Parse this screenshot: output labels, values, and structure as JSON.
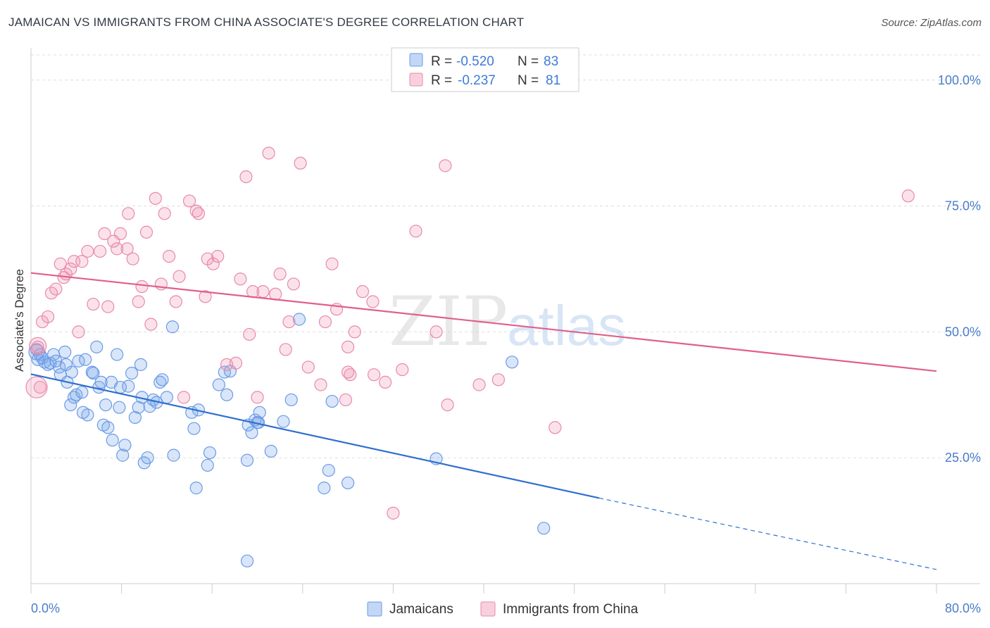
{
  "title": "JAMAICAN VS IMMIGRANTS FROM CHINA ASSOCIATE'S DEGREE CORRELATION CHART",
  "source": "Source: ZipAtlas.com",
  "watermark": {
    "zip": "ZIP",
    "atlas": "atlas"
  },
  "legend": {
    "r_label": "R =",
    "n_label": "N =",
    "series": [
      {
        "r": "-0.520",
        "n": "83"
      },
      {
        "r": "-0.237",
        "n": "81"
      }
    ]
  },
  "colors": {
    "jamaicans": "#6b9be6",
    "jamaicans_fill": "rgba(120,165,235,0.28)",
    "jamaicans_line": "#2f6fd0",
    "china": "#e88aa8",
    "china_fill": "rgba(240,150,180,0.28)",
    "china_line": "#e0608a",
    "axis_text": "#4a7cc9",
    "grid": "#dddddd"
  },
  "chart_data": {
    "type": "scatter",
    "title": "JAMAICAN VS IMMIGRANTS FROM CHINA ASSOCIATE'S DEGREE CORRELATION CHART",
    "xlabel": "",
    "ylabel": "Associate's Degree",
    "xlim": [
      0,
      80
    ],
    "ylim": [
      0,
      105
    ],
    "x_ticks": [
      "0.0%",
      "80.0%"
    ],
    "y_ticks": [
      {
        "value": 25,
        "label": "25.0%"
      },
      {
        "value": 50,
        "label": "50.0%"
      },
      {
        "value": 75,
        "label": "75.0%"
      },
      {
        "value": 100,
        "label": "100.0%"
      }
    ],
    "grid": true,
    "legend_position": "bottom",
    "series": [
      {
        "name": "Jamaicans",
        "trend": {
          "x0": 0,
          "y0": 41.6,
          "x1": 50.2,
          "y1": 17.0,
          "dashed_to_x": 80,
          "dashed_to_y": 2.8
        },
        "points": [
          [
            0.5,
            46.5
          ],
          [
            0.6,
            44.5
          ],
          [
            0.8,
            45.5
          ],
          [
            1.0,
            44.8
          ],
          [
            1.2,
            44.0
          ],
          [
            1.5,
            43.5
          ],
          [
            1.7,
            43.8
          ],
          [
            2.0,
            45.5
          ],
          [
            2.2,
            44.2
          ],
          [
            2.5,
            43.0
          ],
          [
            2.6,
            41.5
          ],
          [
            3.0,
            46.0
          ],
          [
            3.1,
            43.5
          ],
          [
            3.2,
            40.0
          ],
          [
            3.5,
            35.5
          ],
          [
            3.6,
            42.0
          ],
          [
            3.8,
            37.0
          ],
          [
            4.0,
            37.5
          ],
          [
            4.2,
            44.2
          ],
          [
            4.5,
            38.0
          ],
          [
            4.6,
            34.0
          ],
          [
            4.8,
            44.5
          ],
          [
            5.0,
            33.5
          ],
          [
            5.4,
            42.0
          ],
          [
            5.5,
            41.8
          ],
          [
            5.8,
            47.0
          ],
          [
            6.0,
            39.0
          ],
          [
            6.2,
            40.0
          ],
          [
            6.4,
            31.5
          ],
          [
            6.6,
            35.5
          ],
          [
            6.8,
            31.0
          ],
          [
            7.1,
            40.0
          ],
          [
            7.2,
            28.5
          ],
          [
            7.6,
            45.5
          ],
          [
            7.8,
            35.0
          ],
          [
            7.9,
            39.0
          ],
          [
            8.1,
            25.5
          ],
          [
            8.3,
            27.5
          ],
          [
            8.6,
            39.2
          ],
          [
            8.9,
            41.8
          ],
          [
            9.2,
            33.0
          ],
          [
            9.5,
            35.0
          ],
          [
            9.7,
            43.5
          ],
          [
            9.8,
            37.0
          ],
          [
            10.0,
            24.0
          ],
          [
            10.3,
            25.0
          ],
          [
            10.5,
            35.2
          ],
          [
            10.8,
            36.5
          ],
          [
            11.1,
            36.0
          ],
          [
            11.4,
            40.0
          ],
          [
            11.6,
            40.5
          ],
          [
            12.0,
            37.0
          ],
          [
            12.5,
            51.0
          ],
          [
            12.6,
            25.5
          ],
          [
            14.2,
            34.0
          ],
          [
            14.4,
            30.8
          ],
          [
            14.6,
            19.0
          ],
          [
            14.8,
            34.5
          ],
          [
            15.6,
            23.5
          ],
          [
            15.8,
            26.0
          ],
          [
            16.6,
            39.5
          ],
          [
            17.1,
            42.0
          ],
          [
            17.3,
            37.5
          ],
          [
            17.6,
            42.2
          ],
          [
            19.1,
            24.5
          ],
          [
            19.2,
            31.5
          ],
          [
            19.5,
            30.0
          ],
          [
            19.8,
            32.5
          ],
          [
            20.1,
            32.0
          ],
          [
            20.2,
            34.0
          ],
          [
            21.2,
            26.3
          ],
          [
            22.3,
            32.2
          ],
          [
            23.0,
            36.5
          ],
          [
            23.7,
            52.5
          ],
          [
            25.9,
            19.0
          ],
          [
            26.3,
            22.5
          ],
          [
            26.6,
            36.2
          ],
          [
            28.0,
            20.0
          ],
          [
            35.8,
            24.8
          ],
          [
            42.5,
            44.0
          ],
          [
            45.3,
            11.0
          ],
          [
            19.1,
            4.5
          ],
          [
            20.0,
            32.0
          ]
        ]
      },
      {
        "name": "Immigrants from China",
        "trend": {
          "x0": 0,
          "y0": 61.7,
          "x1": 80,
          "y1": 42.2
        },
        "points": [
          [
            0.6,
            47.0
          ],
          [
            0.8,
            39.0
          ],
          [
            1.0,
            52.0
          ],
          [
            1.5,
            53.0
          ],
          [
            1.8,
            57.7
          ],
          [
            2.2,
            58.5
          ],
          [
            2.6,
            63.5
          ],
          [
            2.9,
            60.8
          ],
          [
            3.1,
            61.5
          ],
          [
            3.5,
            62.5
          ],
          [
            3.8,
            64.0
          ],
          [
            4.2,
            50.0
          ],
          [
            4.5,
            64.0
          ],
          [
            5.0,
            66.0
          ],
          [
            5.5,
            55.5
          ],
          [
            6.1,
            66.0
          ],
          [
            6.5,
            69.5
          ],
          [
            6.8,
            55.0
          ],
          [
            7.3,
            68.0
          ],
          [
            7.6,
            66.5
          ],
          [
            7.9,
            69.5
          ],
          [
            8.5,
            66.5
          ],
          [
            8.6,
            73.5
          ],
          [
            9.0,
            64.5
          ],
          [
            9.5,
            56.0
          ],
          [
            9.8,
            59.0
          ],
          [
            10.2,
            69.8
          ],
          [
            10.6,
            51.5
          ],
          [
            11.0,
            76.5
          ],
          [
            11.5,
            59.5
          ],
          [
            11.8,
            73.5
          ],
          [
            12.2,
            65.0
          ],
          [
            12.8,
            56.0
          ],
          [
            13.1,
            61.0
          ],
          [
            13.5,
            37.0
          ],
          [
            14.0,
            76.0
          ],
          [
            14.6,
            74.0
          ],
          [
            14.8,
            73.5
          ],
          [
            15.4,
            57.0
          ],
          [
            15.6,
            64.5
          ],
          [
            16.1,
            63.5
          ],
          [
            16.5,
            65.0
          ],
          [
            17.3,
            43.5
          ],
          [
            18.1,
            43.8
          ],
          [
            18.5,
            60.5
          ],
          [
            19.0,
            80.8
          ],
          [
            19.3,
            49.5
          ],
          [
            19.6,
            58.0
          ],
          [
            20.0,
            37.0
          ],
          [
            20.5,
            58.0
          ],
          [
            21.0,
            85.5
          ],
          [
            21.6,
            57.5
          ],
          [
            22.0,
            61.5
          ],
          [
            22.5,
            46.5
          ],
          [
            22.8,
            52.0
          ],
          [
            23.2,
            59.5
          ],
          [
            23.8,
            83.5
          ],
          [
            24.5,
            43.0
          ],
          [
            25.6,
            39.5
          ],
          [
            26.0,
            52.0
          ],
          [
            26.6,
            63.5
          ],
          [
            27.0,
            54.5
          ],
          [
            27.8,
            36.5
          ],
          [
            28.0,
            47.0
          ],
          [
            28.2,
            41.5
          ],
          [
            28.6,
            50.0
          ],
          [
            29.3,
            58.0
          ],
          [
            30.2,
            56.0
          ],
          [
            30.3,
            41.5
          ],
          [
            31.3,
            40.0
          ],
          [
            32.0,
            14.0
          ],
          [
            32.8,
            42.5
          ],
          [
            34.0,
            70.0
          ],
          [
            35.8,
            50.0
          ],
          [
            36.8,
            35.5
          ],
          [
            36.6,
            83.0
          ],
          [
            39.6,
            39.5
          ],
          [
            41.3,
            40.5
          ],
          [
            46.3,
            31.0
          ],
          [
            77.5,
            77.0
          ],
          [
            28.0,
            42.0
          ]
        ]
      }
    ]
  },
  "bottom_legend": [
    "Jamaicans",
    "Immigrants from China"
  ]
}
